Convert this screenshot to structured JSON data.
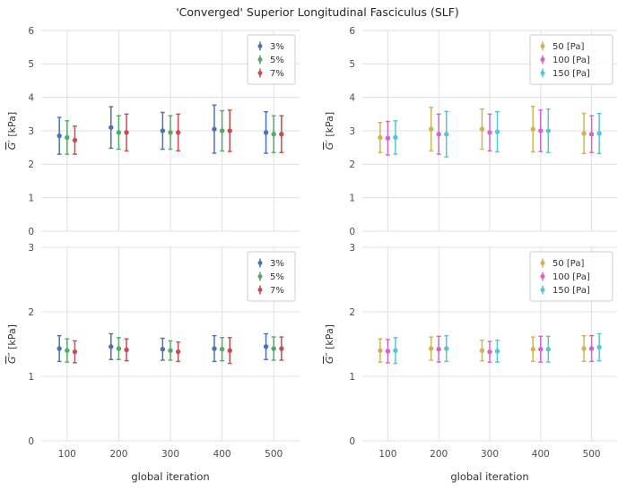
{
  "figure": {
    "title": "'Converged' Superior Longitudinal Fasciculus (SLF)"
  },
  "chart_data": [
    {
      "type": "scatter",
      "position": "top-left",
      "ylabel": {
        "base": "G",
        "primes": "′",
        "unit": " [kPa]"
      },
      "xlabel": "",
      "ylim": [
        0,
        6
      ],
      "yticks": [
        0,
        1,
        2,
        3,
        4,
        5,
        6
      ],
      "xlim": [
        50,
        550
      ],
      "xticks": [
        100,
        200,
        300,
        400,
        500
      ],
      "show_xtick_labels": false,
      "grid": true,
      "legend_position": "upper right",
      "x": [
        100,
        200,
        300,
        400,
        500
      ],
      "series": [
        {
          "name": "3%",
          "color": "#4C72B0",
          "offset": -15,
          "y": [
            2.85,
            3.1,
            3.0,
            3.05,
            2.95
          ],
          "yerr": [
            0.55,
            0.62,
            0.55,
            0.72,
            0.62
          ]
        },
        {
          "name": "5%",
          "color": "#55A868",
          "offset": 0,
          "y": [
            2.8,
            2.95,
            2.95,
            3.0,
            2.9
          ],
          "yerr": [
            0.5,
            0.5,
            0.5,
            0.6,
            0.55
          ]
        },
        {
          "name": "7%",
          "color": "#C44E52",
          "offset": 15,
          "y": [
            2.72,
            2.95,
            2.95,
            3.0,
            2.9
          ],
          "yerr": [
            0.42,
            0.55,
            0.55,
            0.62,
            0.55
          ]
        }
      ]
    },
    {
      "type": "scatter",
      "position": "top-right",
      "ylabel": {
        "base": "G",
        "primes": "′",
        "unit": " [kPa]"
      },
      "xlabel": "",
      "ylim": [
        0,
        6
      ],
      "yticks": [
        0,
        1,
        2,
        3,
        4,
        5,
        6
      ],
      "xlim": [
        50,
        550
      ],
      "xticks": [
        100,
        200,
        300,
        400,
        500
      ],
      "show_xtick_labels": false,
      "grid": true,
      "legend_position": "upper right",
      "x": [
        100,
        200,
        300,
        400,
        500
      ],
      "series": [
        {
          "name": "50 [Pa]",
          "color": "#CFB354",
          "offset": -15,
          "y": [
            2.8,
            3.05,
            3.05,
            3.05,
            2.92
          ],
          "yerr": [
            0.45,
            0.65,
            0.6,
            0.68,
            0.6
          ]
        },
        {
          "name": "100 [Pa]",
          "color": "#DA62C4",
          "offset": 0,
          "y": [
            2.78,
            2.9,
            2.95,
            3.0,
            2.9
          ],
          "yerr": [
            0.5,
            0.6,
            0.55,
            0.62,
            0.55
          ]
        },
        {
          "name": "150 [Pa]",
          "color": "#55C7CE",
          "offset": 15,
          "y": [
            2.8,
            2.9,
            2.97,
            3.0,
            2.92
          ],
          "yerr": [
            0.5,
            0.68,
            0.6,
            0.65,
            0.6
          ]
        }
      ]
    },
    {
      "type": "scatter",
      "position": "bottom-left",
      "ylabel": {
        "base": "G",
        "primes": "″",
        "unit": " [kPa]"
      },
      "xlabel": "global iteration",
      "ylim": [
        0,
        3
      ],
      "yticks": [
        0,
        1,
        2,
        3
      ],
      "xlim": [
        50,
        550
      ],
      "xticks": [
        100,
        200,
        300,
        400,
        500
      ],
      "show_xtick_labels": true,
      "grid": true,
      "legend_position": "upper right",
      "x": [
        100,
        200,
        300,
        400,
        500
      ],
      "series": [
        {
          "name": "3%",
          "color": "#4C72B0",
          "offset": -15,
          "y": [
            1.43,
            1.46,
            1.42,
            1.43,
            1.46
          ],
          "yerr": [
            0.2,
            0.2,
            0.17,
            0.2,
            0.2
          ]
        },
        {
          "name": "5%",
          "color": "#55A868",
          "offset": 0,
          "y": [
            1.4,
            1.43,
            1.4,
            1.42,
            1.43
          ],
          "yerr": [
            0.18,
            0.17,
            0.15,
            0.18,
            0.18
          ]
        },
        {
          "name": "7%",
          "color": "#C44E52",
          "offset": 15,
          "y": [
            1.38,
            1.41,
            1.38,
            1.4,
            1.43
          ],
          "yerr": [
            0.17,
            0.17,
            0.15,
            0.2,
            0.18
          ]
        }
      ]
    },
    {
      "type": "scatter",
      "position": "bottom-right",
      "ylabel": {
        "base": "G",
        "primes": "″",
        "unit": " [kPa]"
      },
      "xlabel": "global iteration",
      "ylim": [
        0,
        3
      ],
      "yticks": [
        0,
        1,
        2,
        3
      ],
      "xlim": [
        50,
        550
      ],
      "xticks": [
        100,
        200,
        300,
        400,
        500
      ],
      "show_xtick_labels": true,
      "grid": true,
      "legend_position": "upper right",
      "x": [
        100,
        200,
        300,
        400,
        500
      ],
      "series": [
        {
          "name": "50 [Pa]",
          "color": "#CFB354",
          "offset": -15,
          "y": [
            1.4,
            1.43,
            1.4,
            1.42,
            1.43
          ],
          "yerr": [
            0.18,
            0.18,
            0.16,
            0.19,
            0.2
          ]
        },
        {
          "name": "100 [Pa]",
          "color": "#DA62C4",
          "offset": 0,
          "y": [
            1.39,
            1.42,
            1.38,
            1.42,
            1.43
          ],
          "yerr": [
            0.18,
            0.2,
            0.16,
            0.2,
            0.2
          ]
        },
        {
          "name": "150 [Pa]",
          "color": "#55C7CE",
          "offset": 15,
          "y": [
            1.4,
            1.43,
            1.39,
            1.42,
            1.45
          ],
          "yerr": [
            0.2,
            0.2,
            0.17,
            0.2,
            0.21
          ]
        }
      ]
    }
  ]
}
